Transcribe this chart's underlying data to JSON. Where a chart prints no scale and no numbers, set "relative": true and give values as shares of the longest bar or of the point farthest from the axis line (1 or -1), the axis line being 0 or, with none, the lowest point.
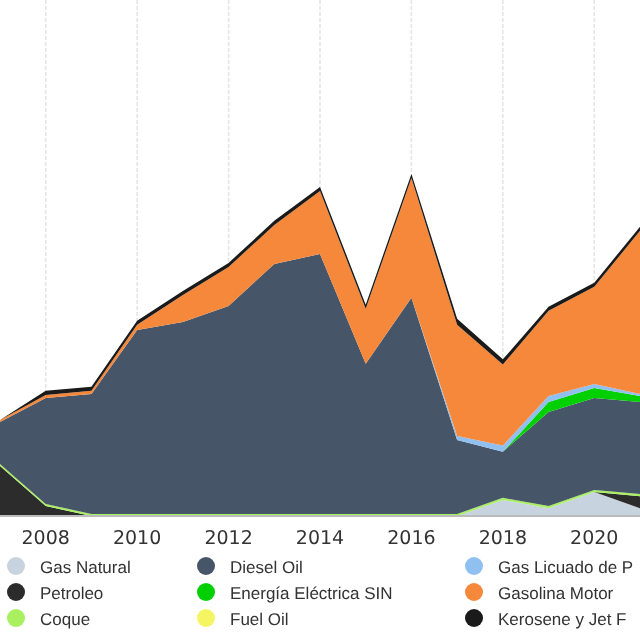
{
  "chart_data": {
    "type": "area",
    "stacked": true,
    "relative": true,
    "x": [
      2007,
      2008,
      2009,
      2010,
      2011,
      2012,
      2013,
      2014,
      2015,
      2016,
      2017,
      2018,
      2019,
      2020,
      2021
    ],
    "xlim": [
      2007,
      2021
    ],
    "xticks": [
      2008,
      2010,
      2012,
      2014,
      2016,
      2018,
      2020
    ],
    "grid": "x",
    "legend": "bottom",
    "series": [
      {
        "name": "Gas Natural",
        "color": "#c8d3e0",
        "values": [
          null,
          null,
          null,
          null,
          null,
          null,
          null,
          null,
          null,
          null,
          0,
          0.047,
          0.023,
          0.07,
          0.023
        ]
      },
      {
        "name": "Petroleo",
        "color": "#2c2c2c",
        "values": [
          0.146,
          0.029,
          0,
          null,
          null,
          null,
          null,
          null,
          null,
          null,
          null,
          null,
          null,
          0,
          0.035
        ]
      },
      {
        "name": "Coque",
        "color": "#a8f060",
        "values": [
          0.006,
          0.006,
          0.006,
          0.006,
          0.006,
          0.006,
          0.006,
          0.006,
          0.006,
          0.006,
          0.006,
          0.006,
          0.006,
          0.006,
          0.006
        ]
      },
      {
        "name": "Diesel Oil",
        "color": "#475569",
        "values": [
          0.123,
          0.31,
          0.351,
          0.538,
          0.561,
          0.608,
          0.731,
          0.76,
          0.439,
          0.632,
          0.216,
          0.135,
          0.275,
          0.269,
          0.269
        ]
      },
      {
        "name": "Energía Eléctrica SIN",
        "color": "#00d000",
        "values": [
          null,
          null,
          null,
          null,
          null,
          null,
          null,
          null,
          null,
          null,
          null,
          0,
          0.029,
          0.029,
          0.018
        ]
      },
      {
        "name": "Fuel Oil",
        "color": "#f5f562",
        "values": [
          null,
          null,
          null,
          null,
          null,
          null,
          null,
          null,
          null,
          null,
          null,
          null,
          null,
          null,
          null
        ]
      },
      {
        "name": "Gas Licuado de P",
        "color": "#90c0f0",
        "values": [
          null,
          null,
          null,
          null,
          null,
          null,
          null,
          null,
          null,
          0,
          0.012,
          0.018,
          0.018,
          0.012,
          0.006
        ]
      },
      {
        "name": "Gasolina Motor",
        "color": "#f5883a",
        "values": [
          0.006,
          0.009,
          0.009,
          0.015,
          0.079,
          0.114,
          0.114,
          0.184,
          0.161,
          0.35,
          0.325,
          0.237,
          0.249,
          0.284,
          0.477
        ]
      },
      {
        "name": "Kerosene y Jet F",
        "color": "#1a1a1a",
        "values": [
          0,
          0.012,
          0.012,
          0.012,
          0.012,
          0.012,
          0.012,
          0.012,
          0.012,
          0.012,
          0.018,
          0.015,
          0.012,
          0.012,
          0.012
        ]
      }
    ]
  }
}
